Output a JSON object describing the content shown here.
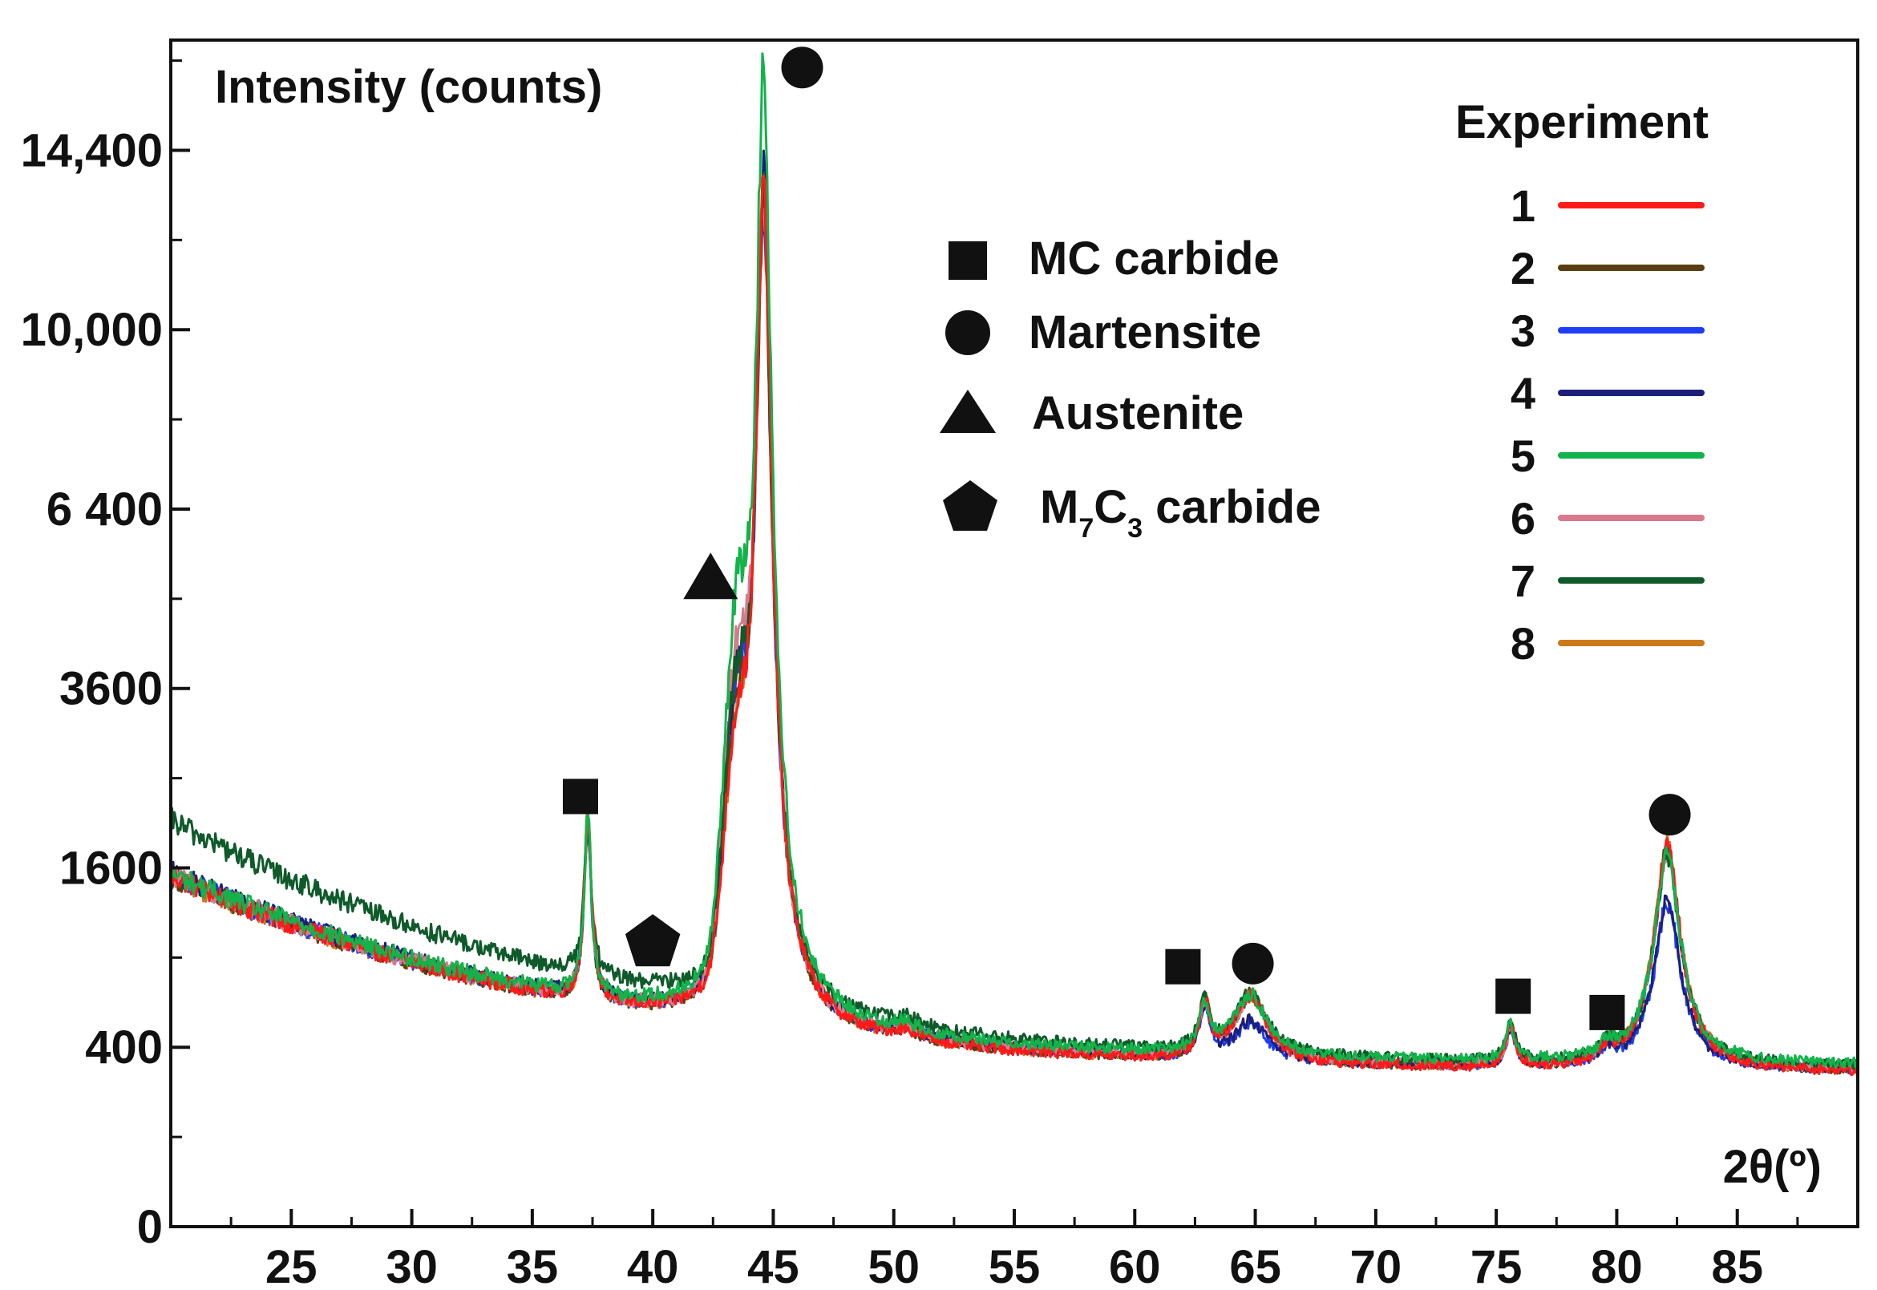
{
  "chart_data": {
    "type": "line",
    "ylabel": "Intensity (counts)",
    "xlabel": "2θ(º)",
    "xlim": [
      20,
      90
    ],
    "y_scale": "sqrt",
    "ylim": [
      0,
      17500
    ],
    "x_ticks": [
      25,
      30,
      35,
      40,
      45,
      50,
      55,
      60,
      65,
      70,
      75,
      80,
      85
    ],
    "y_ticks": [
      {
        "value": 0,
        "label": "0"
      },
      {
        "value": 400,
        "label": "400"
      },
      {
        "value": 1600,
        "label": "1600"
      },
      {
        "value": 3600,
        "label": "3600"
      },
      {
        "value": 6400,
        "label": "6 400"
      },
      {
        "value": 10000,
        "label": "10,000"
      },
      {
        "value": 14400,
        "label": "14,400"
      }
    ],
    "grid": false,
    "legend": {
      "title": "Experiment",
      "placement": "top-right",
      "entries": [
        "1",
        "2",
        "3",
        "4",
        "5",
        "6",
        "7",
        "8"
      ]
    },
    "phase_legend": [
      {
        "symbol": "square",
        "label": "MC carbide"
      },
      {
        "symbol": "circle",
        "label": "Martensite"
      },
      {
        "symbol": "triangle",
        "label": "Austenite"
      },
      {
        "symbol": "pentagon",
        "label_main": "M",
        "sub1": "7",
        "label_mid": "C",
        "sub2": "3",
        "label_end": " carbide"
      }
    ],
    "peak_markers": [
      {
        "symbol": "square",
        "x": 37.0,
        "y": 2300
      },
      {
        "symbol": "pentagon",
        "x": 40.0,
        "y": 1000
      },
      {
        "symbol": "triangle",
        "x": 42.4,
        "y": 5200
      },
      {
        "symbol": "circle",
        "x": 46.2,
        "y": 16700
      },
      {
        "symbol": "square",
        "x": 62.0,
        "y": 840
      },
      {
        "symbol": "circle",
        "x": 64.9,
        "y": 860
      },
      {
        "symbol": "square",
        "x": 75.7,
        "y": 660
      },
      {
        "symbol": "square",
        "x": 79.6,
        "y": 570
      },
      {
        "symbol": "circle",
        "x": 82.2,
        "y": 2110
      }
    ],
    "series": [
      {
        "name": "1",
        "color": "#ff1a1a",
        "bg_start": 1530,
        "bg_end": 290,
        "p_mc1": 1500,
        "p_aus": 1900,
        "p_mart": 12700,
        "p_mc2": 260,
        "p_mart2": 330,
        "p_mc3": 180,
        "p_mc4": 60,
        "p_mart3": 1500
      },
      {
        "name": "2",
        "color": "#5a3e12",
        "bg_start": 1520,
        "bg_end": 295,
        "p_mc1": 1450,
        "p_aus": 2100,
        "p_mart": 12500,
        "p_mc2": 260,
        "p_mart2": 320,
        "p_mc3": 170,
        "p_mc4": 60,
        "p_mart3": 1450
      },
      {
        "name": "3",
        "color": "#1f3df5",
        "bg_start": 1540,
        "bg_end": 300,
        "p_mc1": 1400,
        "p_aus": 2300,
        "p_mart": 12400,
        "p_mc2": 250,
        "p_mart2": 170,
        "p_mc3": 160,
        "p_mc4": 60,
        "p_mart3": 1000
      },
      {
        "name": "4",
        "color": "#1b1f7a",
        "bg_start": 1560,
        "bg_end": 300,
        "p_mc1": 1400,
        "p_aus": 2500,
        "p_mart": 13100,
        "p_mc2": 250,
        "p_mart2": 180,
        "p_mc3": 160,
        "p_mc4": 60,
        "p_mart3": 1050
      },
      {
        "name": "5",
        "color": "#12b34a",
        "bg_start": 1550,
        "bg_end": 320,
        "p_mc1": 1400,
        "p_aus": 3400,
        "p_mart": 15900,
        "p_mc2": 240,
        "p_mart2": 300,
        "p_mc3": 160,
        "p_mc4": 60,
        "p_mart3": 1400
      },
      {
        "name": "6",
        "color": "#d87a8c",
        "bg_start": 1540,
        "bg_end": 300,
        "p_mc1": 1400,
        "p_aus": 2800,
        "p_mart": 12600,
        "p_mc2": 250,
        "p_mart2": 310,
        "p_mc3": 170,
        "p_mc4": 60,
        "p_mart3": 1450
      },
      {
        "name": "7",
        "color": "#0f5a2a",
        "bg_start": 2050,
        "bg_end": 310,
        "p_mc1": 1200,
        "p_aus": 2400,
        "p_mart": 12300,
        "p_mc2": 250,
        "p_mart2": 300,
        "p_mc3": 170,
        "p_mc4": 60,
        "p_mart3": 1400
      },
      {
        "name": "8",
        "color": "#cc7a1a",
        "bg_start": 1520,
        "bg_end": 295,
        "p_mc1": 1450,
        "p_aus": 1900,
        "p_mart": 12800,
        "p_mc2": 255,
        "p_mart2": 330,
        "p_mc3": 170,
        "p_mc4": 60,
        "p_mart3": 1500
      }
    ]
  }
}
